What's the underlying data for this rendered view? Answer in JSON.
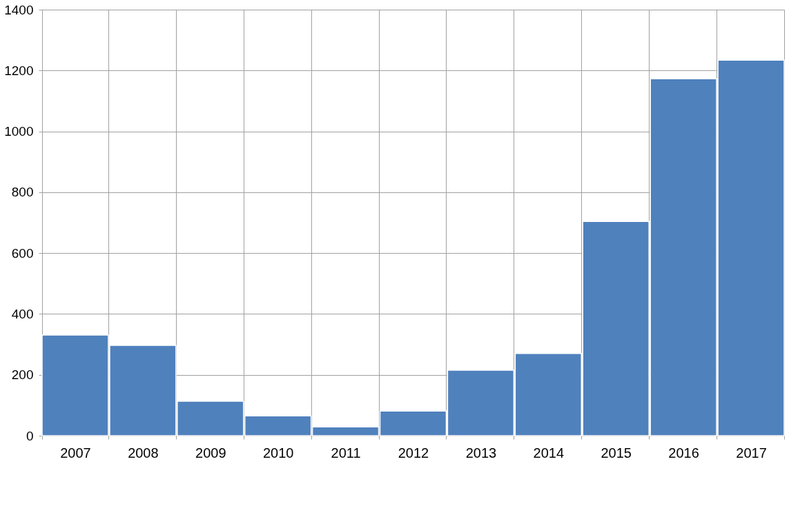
{
  "chart_data": {
    "type": "bar",
    "categories": [
      "2007",
      "2008",
      "2009",
      "2010",
      "2011",
      "2012",
      "2013",
      "2014",
      "2015",
      "2016",
      "2017"
    ],
    "values": [
      331,
      297,
      113,
      65,
      29,
      81,
      215,
      270,
      704,
      1173,
      1234
    ],
    "color": "#4f81bd",
    "ylim": [
      0,
      1400
    ],
    "yticks": [
      0,
      200,
      400,
      600,
      800,
      1000,
      1200,
      1400
    ],
    "grid": true
  }
}
